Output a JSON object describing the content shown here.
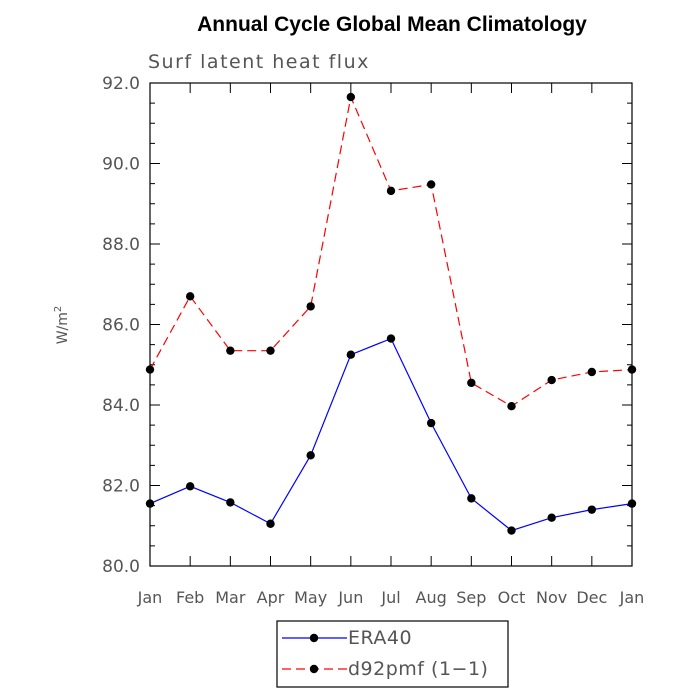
{
  "chart_data": {
    "type": "line",
    "title": "Annual Cycle Global Mean Climatology",
    "subtitle": "Surf latent heat flux",
    "xlabel": "",
    "ylabel": "W/m",
    "ylabel_superscript": "2",
    "categories": [
      "Jan",
      "Feb",
      "Mar",
      "Apr",
      "May",
      "Jun",
      "Jul",
      "Aug",
      "Sep",
      "Oct",
      "Nov",
      "Dec",
      "Jan"
    ],
    "ylim": [
      80.0,
      92.0
    ],
    "yticks": [
      "80.0",
      "82.0",
      "84.0",
      "86.0",
      "88.0",
      "90.0",
      "92.0"
    ],
    "series": [
      {
        "name": "ERA40",
        "color": "#0000ff",
        "dash": "solid",
        "values": [
          81.55,
          81.98,
          81.58,
          81.05,
          82.75,
          85.25,
          85.65,
          83.55,
          81.68,
          80.88,
          81.2,
          81.4,
          81.55
        ]
      },
      {
        "name": "d92pmf (1-1)",
        "color": "#ff0000",
        "dash": "dashed",
        "values": [
          84.88,
          86.7,
          85.35,
          85.35,
          86.45,
          91.65,
          89.32,
          89.48,
          84.55,
          83.97,
          84.62,
          84.82,
          84.88
        ]
      }
    ],
    "legend": {
      "position": "bottom-center",
      "labels": [
        "ERA40",
        "d92pmf (1−1)"
      ]
    },
    "grid": false
  }
}
